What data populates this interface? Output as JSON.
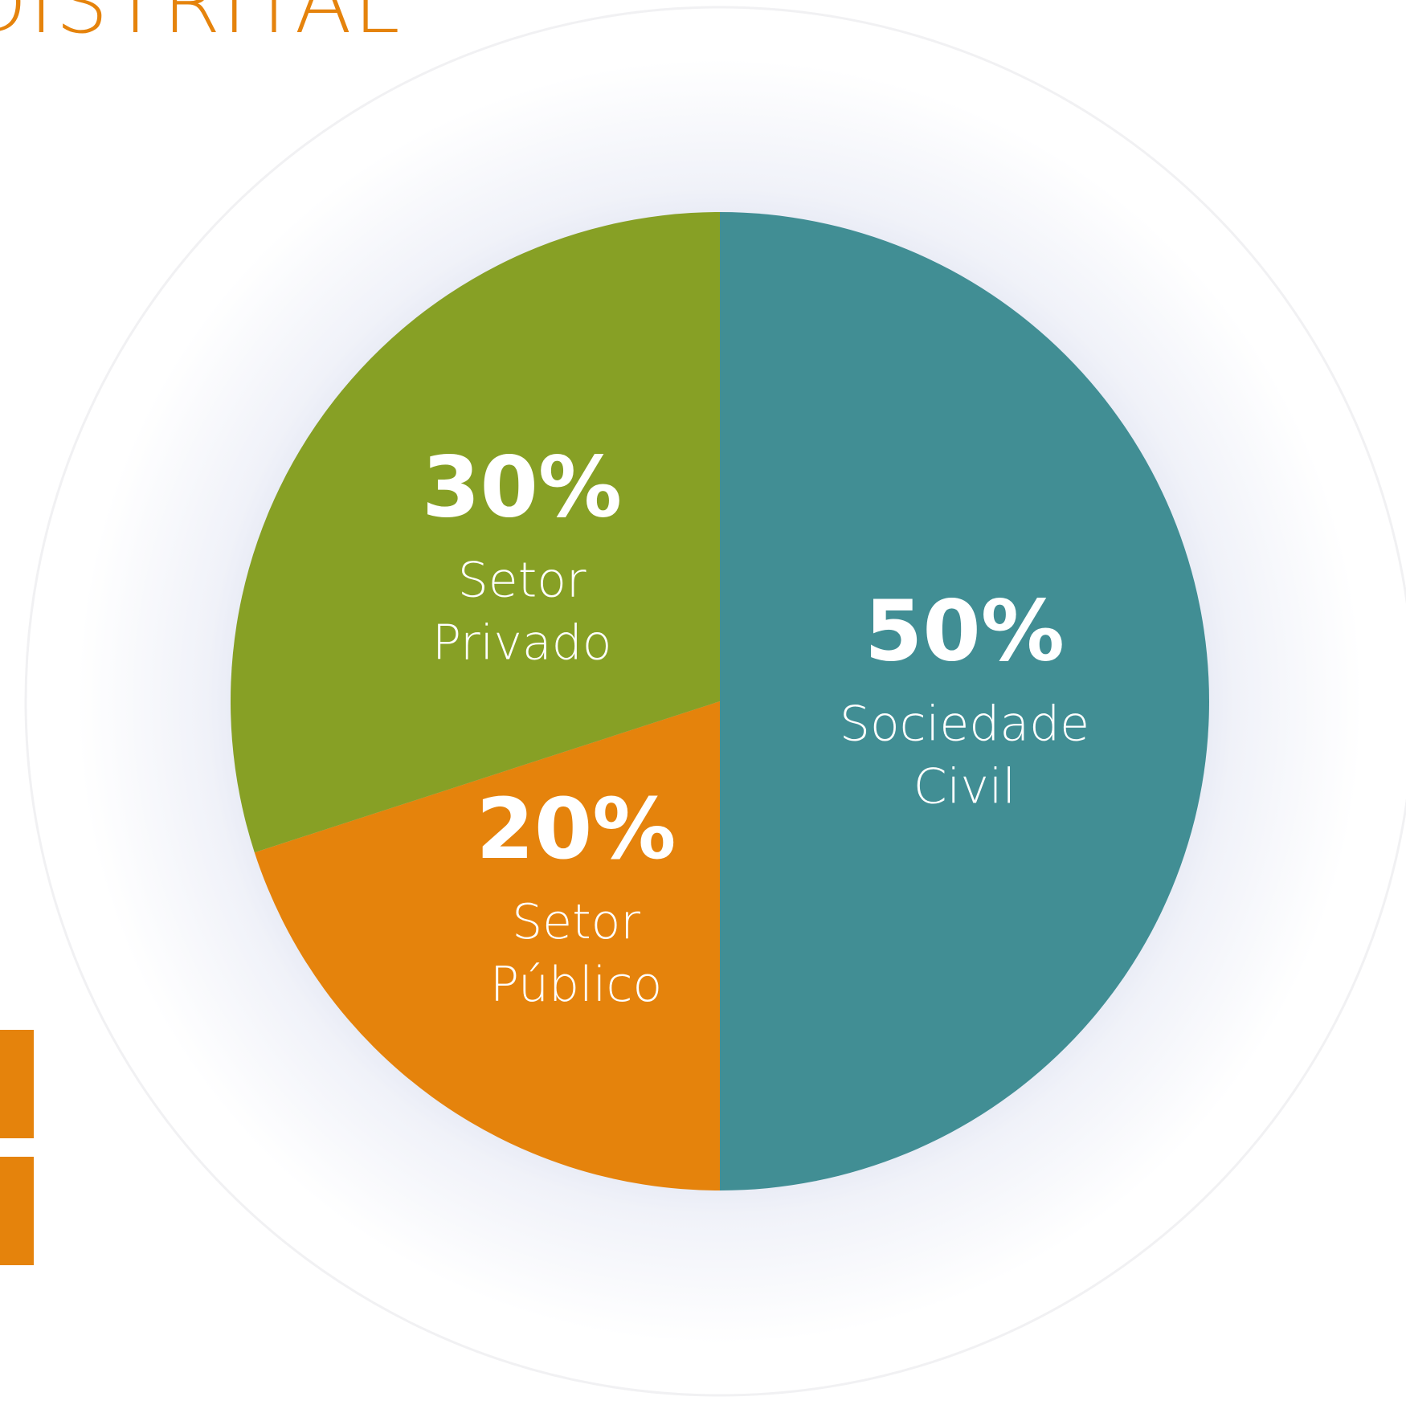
{
  "header": {
    "title": "DISTRITAL"
  },
  "colors": {
    "title": "#e5830c",
    "accent_bar": "#e5830c",
    "halo": "#c4cbe6"
  },
  "chart_data": {
    "type": "pie",
    "start_angle_deg": 0,
    "direction": "clockwise",
    "slices": [
      {
        "label_lines": [
          "Sociedade",
          "Civil"
        ],
        "value": 50,
        "value_label": "50%",
        "color": "#418e94"
      },
      {
        "label_lines": [
          "Setor",
          "Público"
        ],
        "value": 20,
        "value_label": "20%",
        "color": "#e5830c"
      },
      {
        "label_lines": [
          "Setor",
          "Privado"
        ],
        "value": 30,
        "value_label": "30%",
        "color": "#87a025"
      }
    ],
    "legend": "none"
  }
}
